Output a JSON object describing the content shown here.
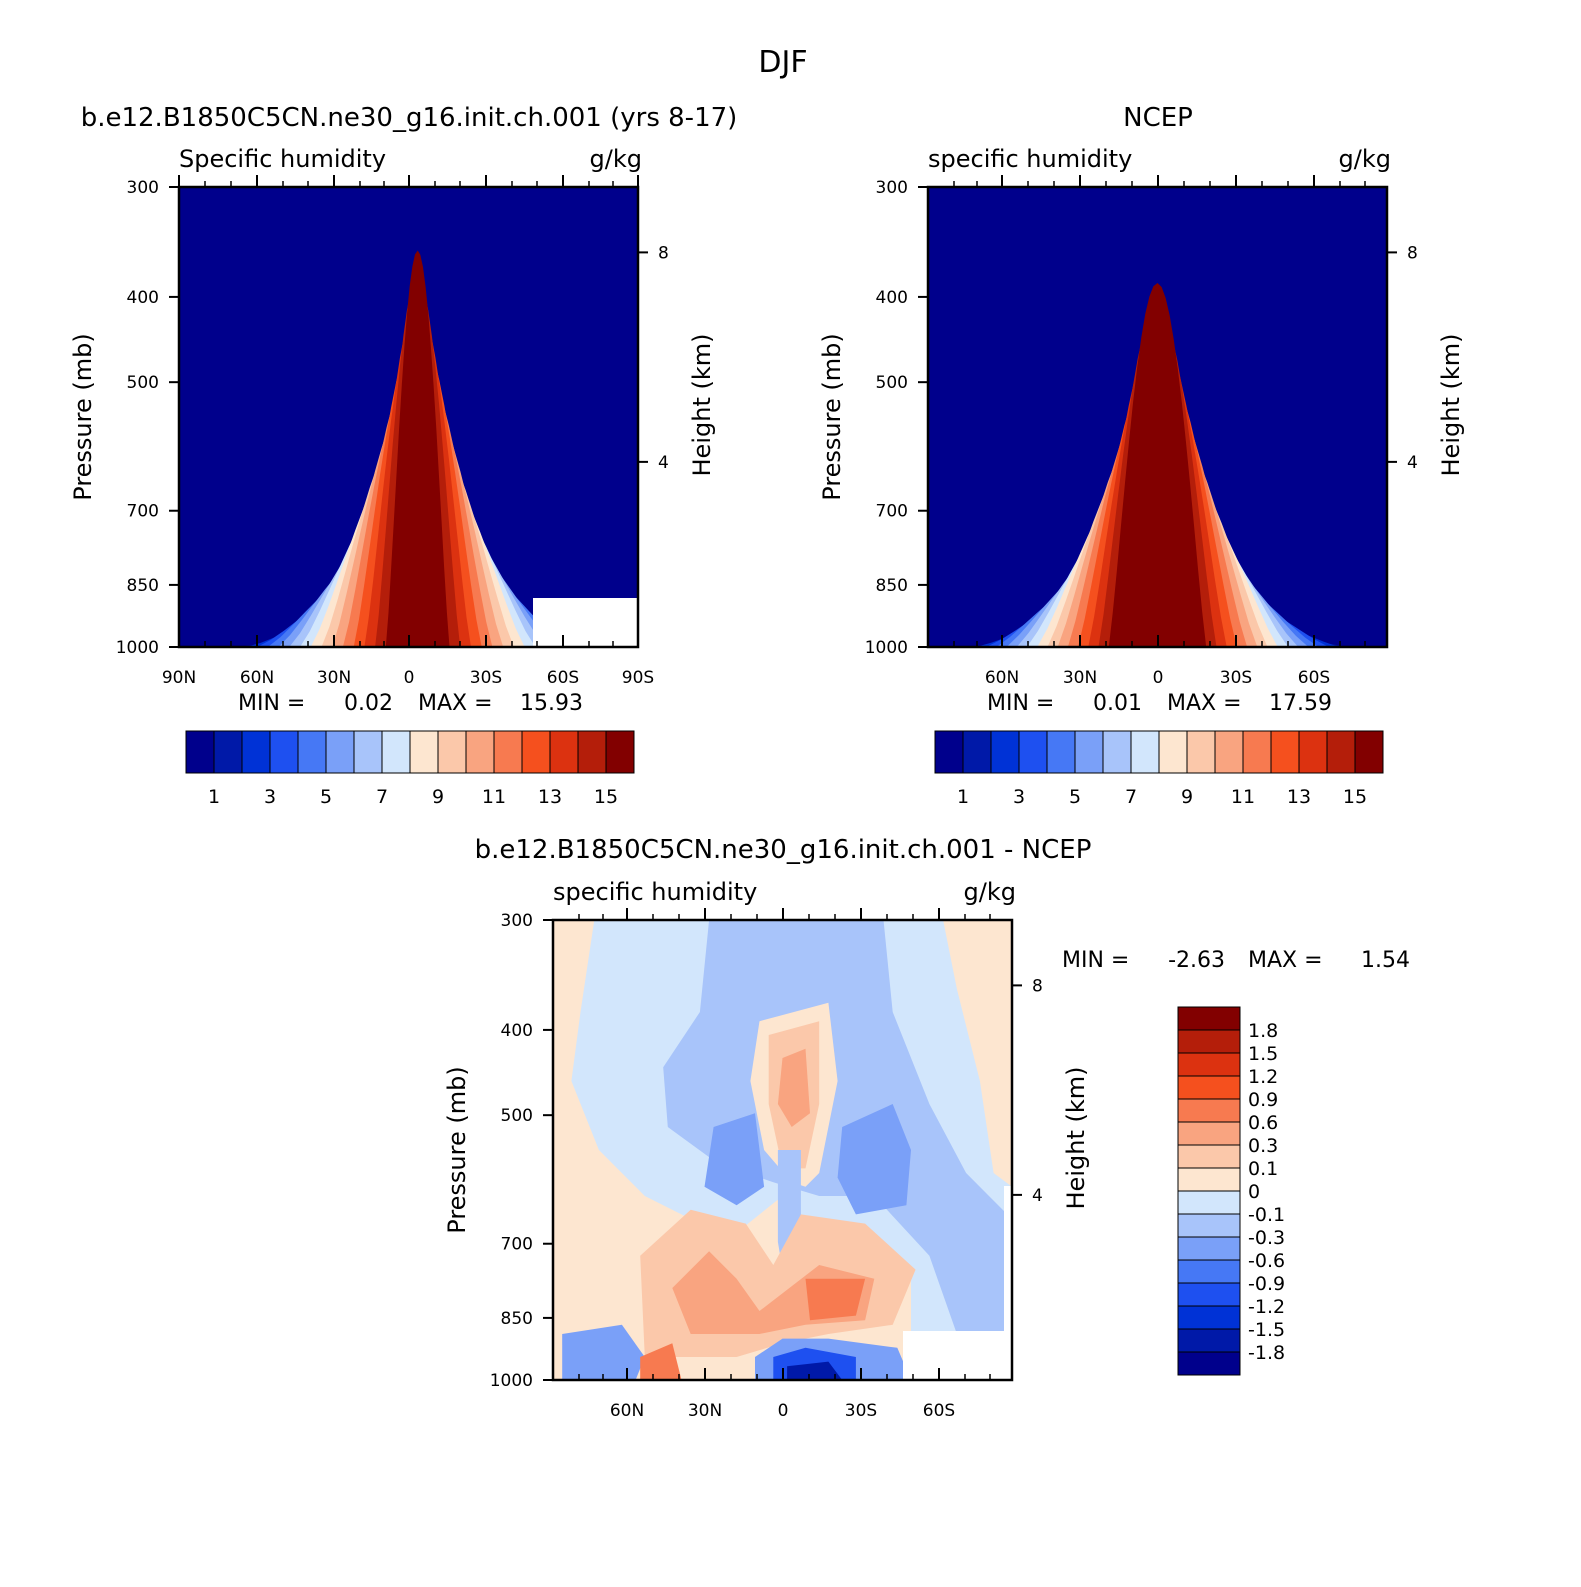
{
  "figure": {
    "title": "DJF"
  },
  "chart_data": [
    {
      "type": "heatmap",
      "id": "model",
      "title": "b.e12.B1850C5CN.ne30_g16.init.ch.001 (yrs 8-17)",
      "variable_label": "Specific humidity",
      "units": "g/kg",
      "ylabel": "Pressure (mb)",
      "y2label": "Height (km)",
      "y_ticks": [
        "300",
        "400",
        "500",
        "700",
        "850",
        "1000"
      ],
      "y2_ticks": [
        "8",
        "4"
      ],
      "x_ticks": [
        "90N",
        "60N",
        "30N",
        "0",
        "30S",
        "60S",
        "90S"
      ],
      "stats": {
        "min_label": "MIN =",
        "min": "0.02",
        "max_label": "MAX =",
        "max": "15.93"
      },
      "colorbar": {
        "colors": [
          "#00008c",
          "#0019a8",
          "#0032d6",
          "#1e50f0",
          "#4678f5",
          "#7aa0f8",
          "#a8c4fa",
          "#d2e6fc",
          "#fde6d0",
          "#fbc8aa",
          "#f9a480",
          "#f77a50",
          "#f5501e",
          "#dc3210",
          "#b41e0a",
          "#820000"
        ],
        "labels": [
          "1",
          "3",
          "5",
          "7",
          "9",
          "11",
          "13",
          "15"
        ]
      },
      "peak_value": 15.93
    },
    {
      "type": "heatmap",
      "id": "ncep",
      "title": "NCEP",
      "variable_label": "specific humidity",
      "units": "g/kg",
      "ylabel": "Pressure (mb)",
      "y2label": "Height (km)",
      "y_ticks": [
        "300",
        "400",
        "500",
        "700",
        "850",
        "1000"
      ],
      "y2_ticks": [
        "8",
        "4"
      ],
      "x_ticks": [
        "60N",
        "30N",
        "0",
        "30S",
        "60S"
      ],
      "stats": {
        "min_label": "MIN =",
        "min": "0.01",
        "max_label": "MAX =",
        "max": "17.59"
      },
      "colorbar": {
        "colors": [
          "#00008c",
          "#0019a8",
          "#0032d6",
          "#1e50f0",
          "#4678f5",
          "#7aa0f8",
          "#a8c4fa",
          "#d2e6fc",
          "#fde6d0",
          "#fbc8aa",
          "#f9a480",
          "#f77a50",
          "#f5501e",
          "#dc3210",
          "#b41e0a",
          "#820000"
        ],
        "labels": [
          "1",
          "3",
          "5",
          "7",
          "9",
          "11",
          "13",
          "15"
        ]
      },
      "peak_value": 17.59
    },
    {
      "type": "heatmap",
      "id": "diff",
      "title": "b.e12.B1850C5CN.ne30_g16.init.ch.001 - NCEP",
      "variable_label": "specific humidity",
      "units": "g/kg",
      "ylabel": "Pressure (mb)",
      "y2label": "Height (km)",
      "y_ticks": [
        "300",
        "400",
        "500",
        "700",
        "850",
        "1000"
      ],
      "y2_ticks": [
        "8",
        "4"
      ],
      "x_ticks": [
        "60N",
        "30N",
        "0",
        "30S",
        "60S"
      ],
      "stats": {
        "min_label": "MIN =",
        "min": "-2.63",
        "max_label": "MAX =",
        "max": "1.54"
      },
      "colorbar": {
        "colors": [
          "#00008c",
          "#0019a8",
          "#0032d6",
          "#1e50f0",
          "#4678f5",
          "#7aa0f8",
          "#a8c4fa",
          "#d2e6fc",
          "#fde6d0",
          "#fbc8aa",
          "#f9a480",
          "#f77a50",
          "#f5501e",
          "#dc3210",
          "#b41e0a",
          "#820000"
        ],
        "labels": [
          "1.8",
          "1.5",
          "1.2",
          "0.9",
          "0.6",
          "0.3",
          "0.1",
          "0",
          "-0.1",
          "-0.3",
          "-0.6",
          "-0.9",
          "-1.2",
          "-1.5",
          "-1.8"
        ]
      }
    }
  ]
}
